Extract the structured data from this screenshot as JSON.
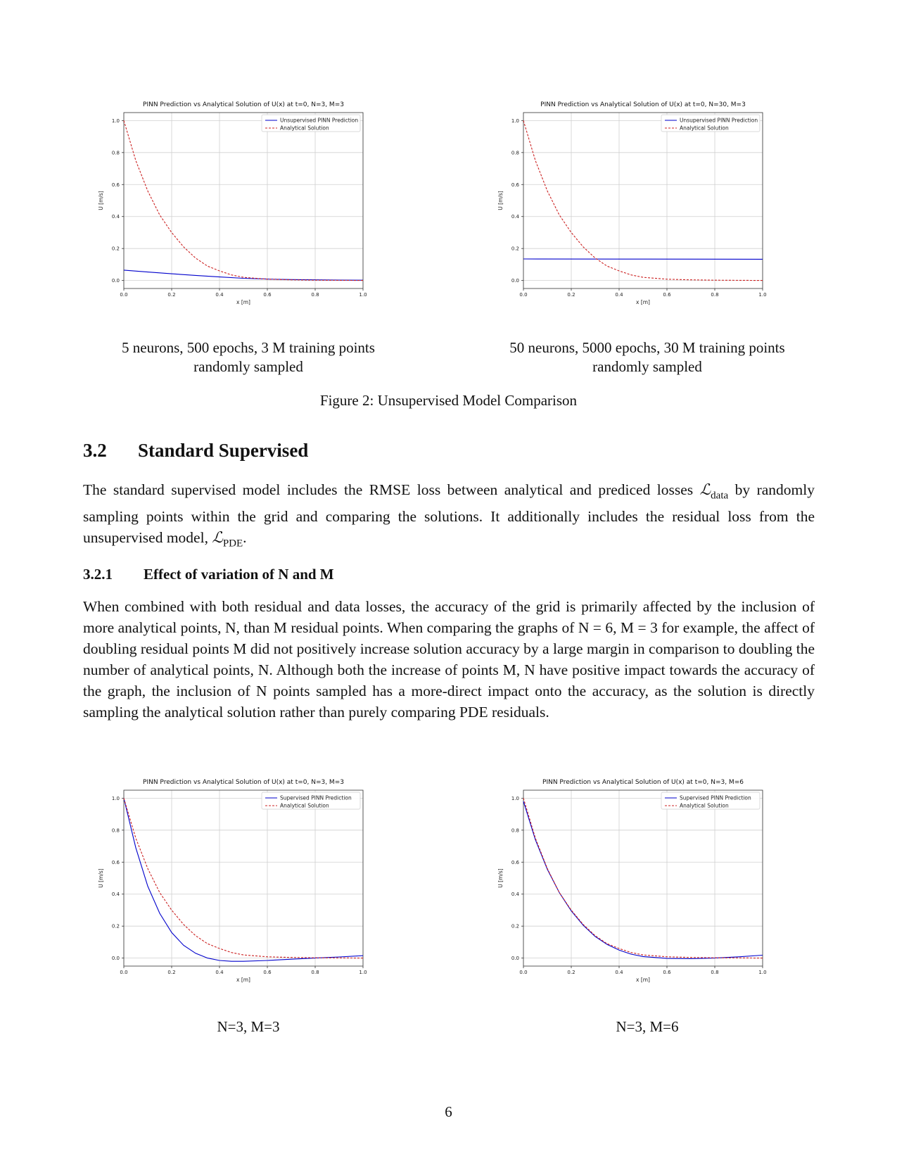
{
  "figure2": {
    "plots": [
      {
        "title": "PINN Prediction vs Analytical Solution of U(x) at t=0, N=3, M=3",
        "xlabel": "x [m]",
        "ylabel": "U [m/s]",
        "legend": [
          "Unsupervised PINN Prediction",
          "Analytical Solution"
        ],
        "subcaption": [
          "5 neurons, 500 epochs, 3 M training points",
          "randomly sampled"
        ]
      },
      {
        "title": "PINN Prediction vs Analytical Solution of U(x) at t=0, N=30, M=3",
        "xlabel": "x [m]",
        "ylabel": "U [m/s]",
        "legend": [
          "Unsupervised PINN Prediction",
          "Analytical Solution"
        ],
        "subcaption": [
          "50 neurons, 5000 epochs, 30 M training points",
          "randomly sampled"
        ]
      }
    ],
    "caption": "Figure 2: Unsupervised Model Comparison"
  },
  "section": {
    "number": "3.2",
    "title": "Standard Supervised"
  },
  "para1": {
    "a": "The standard supervised model includes the RMSE loss between analytical and prediced losses",
    "b_sym": "ℒ",
    "b_sub": "data",
    "c": " by randomly sampling points within the grid and comparing the solutions. It additionally includes the residual loss from the unsupervised model, ",
    "d_sym": "ℒ",
    "d_sub": "PDE",
    "e": "."
  },
  "subsection": {
    "number": "3.2.1",
    "title": "Effect of variation of N and M"
  },
  "para2": "When combined with both residual and data losses, the accuracy of the grid is primarily affected by the inclusion of more analytical points, N, than M residual points. When comparing the graphs of N = 6, M = 3 for example, the affect of doubling residual points M did not positively increase solution accuracy by a large margin in comparison to doubling the number of analytical points, N. Although both the increase of points M, N have positive impact towards the accuracy of the graph, the inclusion of N points sampled has a more-direct impact onto the accuracy, as the solution is directly sampling the analytical solution rather than purely comparing PDE residuals.",
  "figure3": {
    "plots": [
      {
        "title": "PINN Prediction vs Analytical Solution of U(x) at t=0, N=3, M=3",
        "xlabel": "x [m]",
        "ylabel": "U [m/s]",
        "legend": [
          "Supervised PINN Prediction",
          "Analytical Solution"
        ],
        "subcaption": [
          "N=3, M=3"
        ]
      },
      {
        "title": "PINN Prediction vs Analytical Solution of U(x) at t=0, N=3, M=6",
        "xlabel": "x [m]",
        "ylabel": "U [m/s]",
        "legend": [
          "Supervised PINN Prediction",
          "Analytical Solution"
        ],
        "subcaption": [
          "N=3, M=6"
        ]
      }
    ]
  },
  "page_number": "6",
  "chart_data": [
    {
      "type": "line",
      "title": "PINN Prediction vs Analytical Solution of U(x) at t=0, N=3, M=3",
      "xlabel": "x [m]",
      "ylabel": "U [m/s]",
      "xlim": [
        0,
        1
      ],
      "ylim": [
        -0.05,
        1.05
      ],
      "xticks": [
        "0.0",
        "0.2",
        "0.4",
        "0.6",
        "0.8",
        "1.0"
      ],
      "yticks": [
        "0.0",
        "0.2",
        "0.4",
        "0.6",
        "0.8",
        "1.0"
      ],
      "grid": true,
      "legend_position": "top-right",
      "series": [
        {
          "name": "Unsupervised PINN Prediction",
          "color": "#0000cc",
          "style": "solid",
          "x": [
            0,
            0.1,
            0.2,
            0.3,
            0.4,
            0.5,
            0.6,
            0.7,
            0.8,
            0.9,
            1.0
          ],
          "y": [
            0.065,
            0.053,
            0.042,
            0.032,
            0.022,
            0.014,
            0.009,
            0.006,
            0.004,
            0.003,
            0.002
          ]
        },
        {
          "name": "Analytical Solution",
          "color": "#cc2222",
          "style": "dashed",
          "x": [
            0,
            0.05,
            0.1,
            0.15,
            0.2,
            0.25,
            0.3,
            0.35,
            0.4,
            0.45,
            0.5,
            0.6,
            0.7,
            0.8,
            0.9,
            1.0
          ],
          "y": [
            1.0,
            0.75,
            0.56,
            0.41,
            0.3,
            0.21,
            0.14,
            0.09,
            0.06,
            0.035,
            0.02,
            0.008,
            0.004,
            0.002,
            0.001,
            0.0
          ]
        }
      ]
    },
    {
      "type": "line",
      "title": "PINN Prediction vs Analytical Solution of U(x) at t=0, N=30, M=3",
      "xlabel": "x [m]",
      "ylabel": "U [m/s]",
      "xlim": [
        0,
        1
      ],
      "ylim": [
        -0.05,
        1.05
      ],
      "xticks": [
        "0.0",
        "0.2",
        "0.4",
        "0.6",
        "0.8",
        "1.0"
      ],
      "yticks": [
        "0.0",
        "0.2",
        "0.4",
        "0.6",
        "0.8",
        "1.0"
      ],
      "grid": true,
      "legend_position": "top-right",
      "series": [
        {
          "name": "Unsupervised PINN Prediction",
          "color": "#0000cc",
          "style": "solid",
          "x": [
            0,
            0.5,
            1.0
          ],
          "y": [
            0.135,
            0.134,
            0.133
          ]
        },
        {
          "name": "Analytical Solution",
          "color": "#cc2222",
          "style": "dashed",
          "x": [
            0,
            0.05,
            0.1,
            0.15,
            0.2,
            0.25,
            0.3,
            0.35,
            0.4,
            0.45,
            0.5,
            0.6,
            0.7,
            0.8,
            0.9,
            1.0
          ],
          "y": [
            1.0,
            0.75,
            0.56,
            0.41,
            0.3,
            0.21,
            0.14,
            0.09,
            0.06,
            0.035,
            0.02,
            0.008,
            0.004,
            0.002,
            0.001,
            0.0
          ]
        }
      ]
    },
    {
      "type": "line",
      "title": "PINN Prediction vs Analytical Solution of U(x) at t=0, N=3, M=3",
      "xlabel": "x [m]",
      "ylabel": "U [m/s]",
      "xlim": [
        0,
        1
      ],
      "ylim": [
        -0.05,
        1.05
      ],
      "xticks": [
        "0.0",
        "0.2",
        "0.4",
        "0.6",
        "0.8",
        "1.0"
      ],
      "yticks": [
        "0.0",
        "0.2",
        "0.4",
        "0.6",
        "0.8",
        "1.0"
      ],
      "grid": true,
      "legend_position": "top-right",
      "series": [
        {
          "name": "Supervised PINN Prediction",
          "color": "#0000cc",
          "style": "solid",
          "x": [
            0,
            0.05,
            0.1,
            0.15,
            0.2,
            0.25,
            0.3,
            0.35,
            0.4,
            0.45,
            0.5,
            0.6,
            0.7,
            0.8,
            0.9,
            1.0
          ],
          "y": [
            1.0,
            0.69,
            0.45,
            0.28,
            0.16,
            0.08,
            0.03,
            0.0,
            -0.015,
            -0.02,
            -0.02,
            -0.015,
            -0.007,
            0.0,
            0.007,
            0.015
          ]
        },
        {
          "name": "Analytical Solution",
          "color": "#cc2222",
          "style": "dashed",
          "x": [
            0,
            0.05,
            0.1,
            0.15,
            0.2,
            0.25,
            0.3,
            0.35,
            0.4,
            0.45,
            0.5,
            0.6,
            0.7,
            0.8,
            0.9,
            1.0
          ],
          "y": [
            1.0,
            0.75,
            0.56,
            0.41,
            0.3,
            0.21,
            0.14,
            0.09,
            0.06,
            0.035,
            0.02,
            0.008,
            0.004,
            0.002,
            0.001,
            0.0
          ]
        }
      ]
    },
    {
      "type": "line",
      "title": "PINN Prediction vs Analytical Solution of U(x) at t=0, N=3, M=6",
      "xlabel": "x [m]",
      "ylabel": "U [m/s]",
      "xlim": [
        0,
        1
      ],
      "ylim": [
        -0.05,
        1.05
      ],
      "xticks": [
        "0.0",
        "0.2",
        "0.4",
        "0.6",
        "0.8",
        "1.0"
      ],
      "yticks": [
        "0.0",
        "0.2",
        "0.4",
        "0.6",
        "0.8",
        "1.0"
      ],
      "grid": true,
      "legend_position": "top-right",
      "series": [
        {
          "name": "Supervised PINN Prediction",
          "color": "#0000cc",
          "style": "solid",
          "x": [
            0,
            0.05,
            0.1,
            0.15,
            0.2,
            0.25,
            0.3,
            0.35,
            0.4,
            0.45,
            0.5,
            0.6,
            0.7,
            0.8,
            0.9,
            1.0
          ],
          "y": [
            0.98,
            0.74,
            0.555,
            0.41,
            0.295,
            0.205,
            0.135,
            0.085,
            0.05,
            0.025,
            0.01,
            -0.002,
            -0.004,
            0.0,
            0.008,
            0.018
          ]
        },
        {
          "name": "Analytical Solution",
          "color": "#cc2222",
          "style": "dashed",
          "x": [
            0,
            0.05,
            0.1,
            0.15,
            0.2,
            0.25,
            0.3,
            0.35,
            0.4,
            0.45,
            0.5,
            0.6,
            0.7,
            0.8,
            0.9,
            1.0
          ],
          "y": [
            1.0,
            0.75,
            0.56,
            0.41,
            0.3,
            0.21,
            0.14,
            0.09,
            0.06,
            0.035,
            0.02,
            0.008,
            0.004,
            0.002,
            0.001,
            0.0
          ]
        }
      ]
    }
  ]
}
